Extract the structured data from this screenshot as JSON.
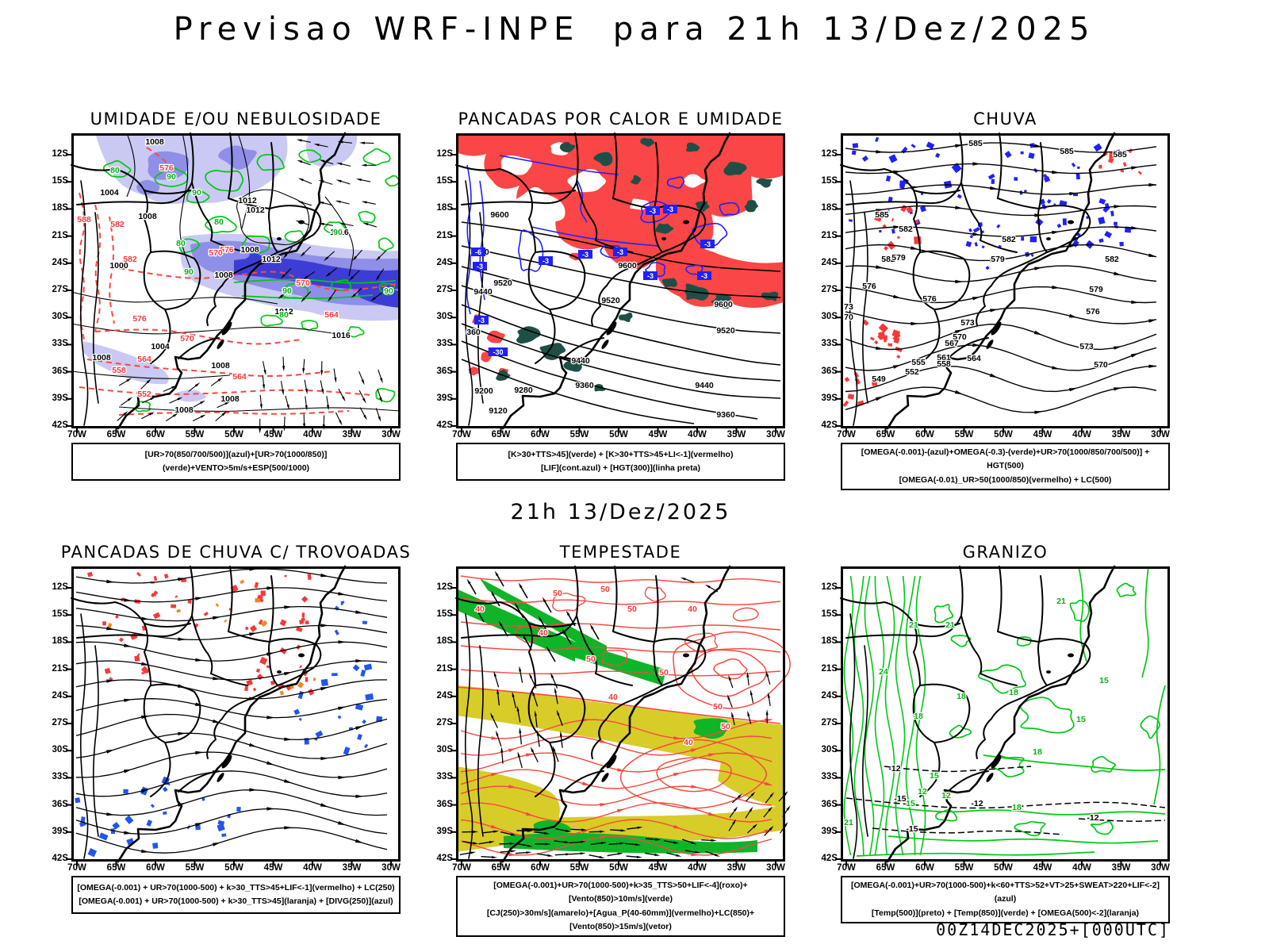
{
  "page_title": "Previsao WRF-INPE  para 21h 13/Dez/2025",
  "center_datetime": "21h 13/Dez/2025",
  "footer_timestamp": "00Z14DEC2025+[000UTC]",
  "axes": {
    "lat_ticks": [
      "12S",
      "15S",
      "18S",
      "21S",
      "24S",
      "27S",
      "30S",
      "33S",
      "36S",
      "39S",
      "42S"
    ],
    "lon_ticks": [
      "70W",
      "65W",
      "60W",
      "55W",
      "50W",
      "45W",
      "40W",
      "35W",
      "30W"
    ]
  },
  "colors": {
    "blue_light": "#c9c9f3",
    "blue_mid": "#8f8fe8",
    "blue_dark": "#3d3dd6",
    "green_contour": "#00c814",
    "green_fill": "#10b428",
    "red_fill": "#fa4646",
    "red_contour": "#f84840",
    "dark_teal": "#1e4f46",
    "blue_contour": "#2020ff",
    "yellow_fill": "#d8cc28",
    "orange_fill": "#f08820",
    "black": "#000000"
  },
  "panels": [
    {
      "id": "umidade",
      "title": "UMIDADE E/OU NEBULOSIDADE",
      "caption_lines": [
        "[UR>70(850/700/500)](azul)+[UR>70(1000/850)](verde)+VENTO>5m/s+ESP(500/1000)"
      ],
      "contour_labels": {
        "black": [
          [
            "1008",
            105,
            14
          ],
          [
            "1004",
            48,
            78
          ],
          [
            "1012",
            222,
            88
          ],
          [
            "1012",
            232,
            100
          ],
          [
            "1008",
            96,
            108
          ],
          [
            "1016",
            338,
            128
          ],
          [
            "1008",
            225,
            150
          ],
          [
            "1000",
            60,
            170
          ],
          [
            "1012",
            252,
            162
          ],
          [
            "1008",
            192,
            182
          ],
          [
            "1012",
            268,
            228
          ],
          [
            "1016",
            340,
            258
          ],
          [
            "1004",
            112,
            272
          ],
          [
            "1008",
            188,
            296
          ],
          [
            "1008",
            38,
            286
          ],
          [
            "1008",
            142,
            352
          ],
          [
            "1008",
            200,
            338
          ]
        ],
        "green": [
          [
            "80",
            55,
            50
          ],
          [
            "90",
            126,
            58
          ],
          [
            "90",
            158,
            78
          ],
          [
            "80",
            186,
            115
          ],
          [
            "80",
            138,
            142
          ],
          [
            "90",
            148,
            178
          ],
          [
            "90",
            272,
            202
          ],
          [
            "80",
            268,
            232
          ],
          [
            "90",
            400,
            202
          ],
          [
            "90",
            336,
            128
          ]
        ],
        "red": [
          [
            "576",
            120,
            47
          ],
          [
            "588",
            16,
            112
          ],
          [
            "582",
            58,
            118
          ],
          [
            "582",
            74,
            162
          ],
          [
            "576",
            196,
            150
          ],
          [
            "570",
            182,
            154
          ],
          [
            "570",
            292,
            192
          ],
          [
            "564",
            328,
            232
          ],
          [
            "576",
            86,
            237
          ],
          [
            "570",
            146,
            262
          ],
          [
            "564",
            92,
            288
          ],
          [
            "558",
            60,
            302
          ],
          [
            "564",
            212,
            310
          ],
          [
            "552",
            92,
            332
          ]
        ]
      }
    },
    {
      "id": "pancadas_calor",
      "title": "PANCADAS POR CALOR E UMIDADE",
      "caption_lines": [
        "[K>30+TTS>45](verde) + [K>30+TTS>45+LI<-1](vermelho)",
        "[LIF](cont.azul) + [HGT(300)](linha preta)"
      ],
      "contour_labels": {
        "black": [
          [
            "9600",
            55,
            106
          ],
          [
            "9520",
            30,
            153
          ],
          [
            "9520",
            59,
            192
          ],
          [
            "9440",
            34,
            203
          ],
          [
            "9600",
            216,
            170
          ],
          [
            "9520",
            195,
            214
          ],
          [
            "9600",
            337,
            219
          ],
          [
            "9520",
            340,
            252
          ],
          [
            "360",
            22,
            254
          ],
          [
            "9440",
            157,
            290
          ],
          [
            "9360",
            162,
            321
          ],
          [
            "9280",
            85,
            327
          ],
          [
            "9200",
            35,
            328
          ],
          [
            "9120",
            53,
            353
          ],
          [
            "9440",
            313,
            321
          ],
          [
            "9360",
            340,
            358
          ]
        ],
        "blue_chips": [
          [
            "-3",
            248,
            98
          ],
          [
            "-3",
            270,
            96
          ],
          [
            "-3",
            163,
            153
          ],
          [
            "-3",
            207,
            150
          ],
          [
            "-3",
            113,
            161
          ],
          [
            "-3",
            317,
            140
          ],
          [
            "-3",
            30,
            168
          ],
          [
            "-3",
            245,
            180
          ],
          [
            "-3",
            313,
            180
          ],
          [
            "-3",
            32,
            236
          ],
          [
            "-30",
            53,
            276
          ],
          [
            "-6",
            28,
            150
          ]
        ]
      }
    },
    {
      "id": "chuva",
      "title": "CHUVA",
      "caption_lines": [
        "[OMEGA(-0.001)-(azul)+OMEGA(-0.3)-(verde)+UR>70(1000/850/700/500)] + HGT(500)",
        "[OMEGA(-0.01)_UR>50(1000/850)(vermelho) + LC(500)"
      ],
      "contour_labels": {
        "black": [
          [
            "585",
            170,
            16
          ],
          [
            "585",
            285,
            26
          ],
          [
            "585",
            352,
            30
          ],
          [
            "585",
            52,
            106
          ],
          [
            "582",
            82,
            124
          ],
          [
            "582",
            212,
            137
          ],
          [
            "582",
            60,
            162
          ],
          [
            "579",
            73,
            160
          ],
          [
            "579",
            198,
            162
          ],
          [
            "582",
            342,
            162
          ],
          [
            "579",
            322,
            200
          ],
          [
            "576",
            318,
            228
          ],
          [
            "576",
            36,
            196
          ],
          [
            "573",
            160,
            242
          ],
          [
            "570",
            150,
            260
          ],
          [
            "567",
            140,
            268
          ],
          [
            "564",
            168,
            287
          ],
          [
            "561",
            130,
            286
          ],
          [
            "558",
            130,
            294
          ],
          [
            "555",
            98,
            292
          ],
          [
            "552",
            90,
            304
          ],
          [
            "549",
            48,
            313
          ],
          [
            "573",
            310,
            272
          ],
          [
            "570",
            328,
            295
          ],
          [
            "73",
            10,
            222
          ],
          [
            "70",
            10,
            235
          ],
          [
            "576",
            112,
            212
          ]
        ]
      }
    },
    {
      "id": "trovoadas",
      "title": "PANCADAS DE CHUVA C/ TROVOADAS",
      "caption_lines": [
        "[OMEGA(-0.001) + UR>70(1000-500) + k>30_TTS>45+LIF<-1](vermelho) + LC(250)",
        "[OMEGA(-0.001) + UR>70(1000-500) + k>30_TTS>45](laranja) + [DIVG(250)](azul)"
      ],
      "contour_labels": {}
    },
    {
      "id": "tempestade",
      "title": "TEMPESTADE",
      "caption_lines": [
        "[OMEGA(-0.001)+UR>70(1000-500)+k>35_TTS>50+LIF<-4](roxo)+[Vento(850)>10m/s](verde)",
        "[CJ(250)>30m/s](amarelo)+[Agua_P(40-60mm)](vermelho)+LC(850)+[Vento(850)>15m/s](vetor)"
      ],
      "contour_labels": {
        "red": [
          [
            "40",
            30,
            57
          ],
          [
            "50",
            128,
            37
          ],
          [
            "50",
            188,
            32
          ],
          [
            "50",
            222,
            57
          ],
          [
            "40",
            298,
            57
          ],
          [
            "50",
            170,
            120
          ],
          [
            "50",
            262,
            137
          ],
          [
            "40",
            198,
            168
          ],
          [
            "50",
            330,
            180
          ],
          [
            "50",
            340,
            205
          ],
          [
            "40",
            293,
            225
          ],
          [
            "40",
            110,
            87
          ]
        ]
      }
    },
    {
      "id": "granizo",
      "title": "GRANIZO",
      "caption_lines": [
        "[OMEGA(-0.001)+UR>70(1000-500)+k<60+TTS>52+VT>25+SWEAT>220+LIF<-2](azul)",
        "[Temp(500)](preto) + [Temp(850)](verde) + [OMEGA(500)<-2](laranja)"
      ],
      "contour_labels": {
        "green": [
          [
            "21",
            92,
            77
          ],
          [
            "21",
            138,
            77
          ],
          [
            "24",
            54,
            136
          ],
          [
            "21",
            278,
            47
          ],
          [
            "18",
            218,
            162
          ],
          [
            "18",
            152,
            167
          ],
          [
            "18",
            98,
            192
          ],
          [
            "15",
            332,
            147
          ],
          [
            "15",
            303,
            196
          ],
          [
            "18",
            248,
            237
          ],
          [
            "15",
            118,
            267
          ],
          [
            "12",
            103,
            287
          ],
          [
            "15",
            88,
            302
          ],
          [
            "12",
            133,
            292
          ],
          [
            "18",
            222,
            307
          ],
          [
            "21",
            10,
            326
          ]
        ],
        "black": [
          [
            "-12",
            68,
            258
          ],
          [
            "-12",
            172,
            302
          ],
          [
            "-15",
            75,
            296
          ],
          [
            "-12",
            318,
            320
          ],
          [
            "-15",
            90,
            334
          ]
        ]
      }
    }
  ]
}
